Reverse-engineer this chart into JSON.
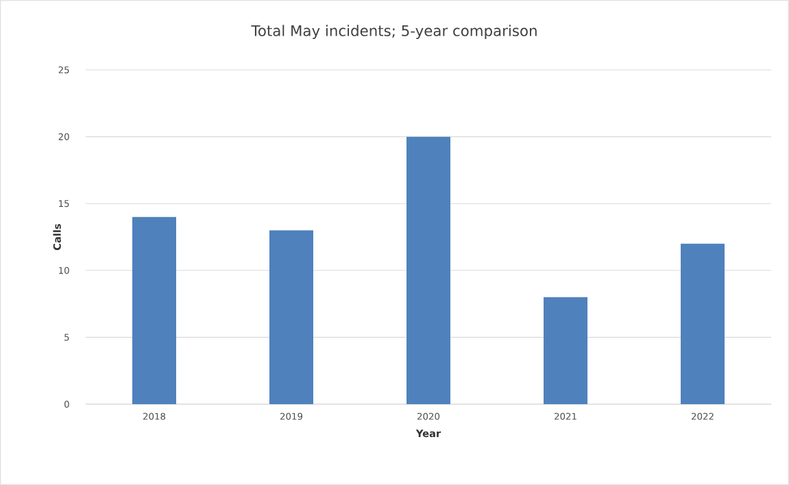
{
  "chart_data": {
    "type": "bar",
    "title": "Total May incidents; 5-year comparison",
    "xlabel": "Year",
    "ylabel": "Calls",
    "categories": [
      "2018",
      "2019",
      "2020",
      "2021",
      "2022"
    ],
    "values": [
      14,
      13,
      20,
      8,
      12
    ],
    "color": "#4f81bd",
    "ylim": [
      0,
      25
    ],
    "yticks": [
      0,
      5,
      10,
      15,
      20,
      25
    ],
    "grid": "y"
  }
}
